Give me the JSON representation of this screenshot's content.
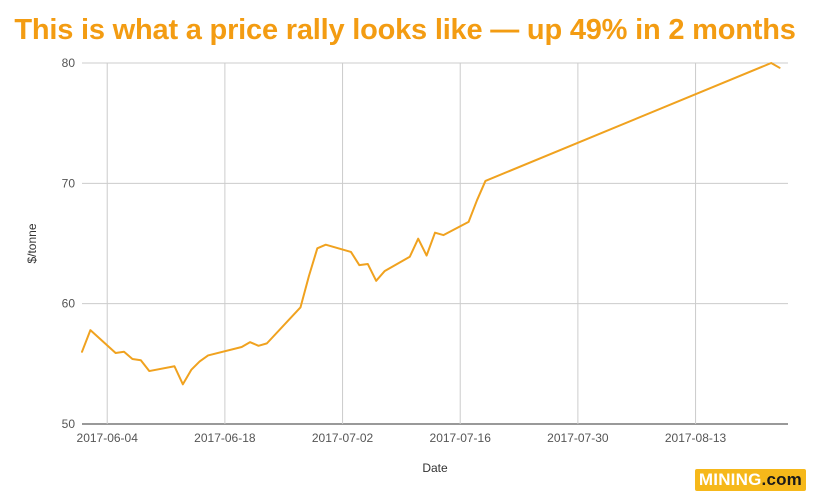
{
  "title": "This is what a price rally looks like — up 49% in 2 months",
  "brand": {
    "name": "MINING",
    "suffix": ".com",
    "color": "#f6b81a"
  },
  "colors": {
    "accent": "#f39c12",
    "line": "#f0a21f",
    "grid": "#cccccc"
  },
  "chart_data": {
    "type": "line",
    "title": "This is what a price rally looks like — up 49% in 2 months",
    "xlabel": "Date",
    "ylabel": "$/tonne",
    "xlim": [
      "2017-06-01",
      "2017-08-24"
    ],
    "ylim": [
      50,
      80
    ],
    "grid": true,
    "legend": "none",
    "x_ticks": [
      "2017-06-04",
      "2017-06-18",
      "2017-07-02",
      "2017-07-16",
      "2017-07-30",
      "2017-08-13"
    ],
    "y_ticks": [
      50,
      60,
      70,
      80
    ],
    "series": [
      {
        "color": "#f0a21f",
        "points": [
          [
            "2017-06-01",
            56.0
          ],
          [
            "2017-06-02",
            57.8
          ],
          [
            "2017-06-05",
            55.9
          ],
          [
            "2017-06-06",
            56.0
          ],
          [
            "2017-06-07",
            55.4
          ],
          [
            "2017-06-08",
            55.3
          ],
          [
            "2017-06-09",
            54.4
          ],
          [
            "2017-06-12",
            54.8
          ],
          [
            "2017-06-13",
            53.3
          ],
          [
            "2017-06-14",
            54.5
          ],
          [
            "2017-06-15",
            55.2
          ],
          [
            "2017-06-16",
            55.7
          ],
          [
            "2017-06-20",
            56.4
          ],
          [
            "2017-06-21",
            56.8
          ],
          [
            "2017-06-22",
            56.5
          ],
          [
            "2017-06-23",
            56.7
          ],
          [
            "2017-06-27",
            59.7
          ],
          [
            "2017-06-28",
            62.3
          ],
          [
            "2017-06-29",
            64.6
          ],
          [
            "2017-06-30",
            64.9
          ],
          [
            "2017-07-03",
            64.3
          ],
          [
            "2017-07-04",
            63.2
          ],
          [
            "2017-07-05",
            63.3
          ],
          [
            "2017-07-06",
            61.9
          ],
          [
            "2017-07-07",
            62.7
          ],
          [
            "2017-07-10",
            63.9
          ],
          [
            "2017-07-11",
            65.4
          ],
          [
            "2017-07-12",
            64.0
          ],
          [
            "2017-07-13",
            65.9
          ],
          [
            "2017-07-14",
            65.7
          ],
          [
            "2017-07-17",
            66.8
          ],
          [
            "2017-07-18",
            68.6
          ],
          [
            "2017-07-19",
            70.2
          ],
          [
            "2017-08-22",
            80.0
          ],
          [
            "2017-08-23",
            79.6
          ]
        ]
      }
    ]
  }
}
